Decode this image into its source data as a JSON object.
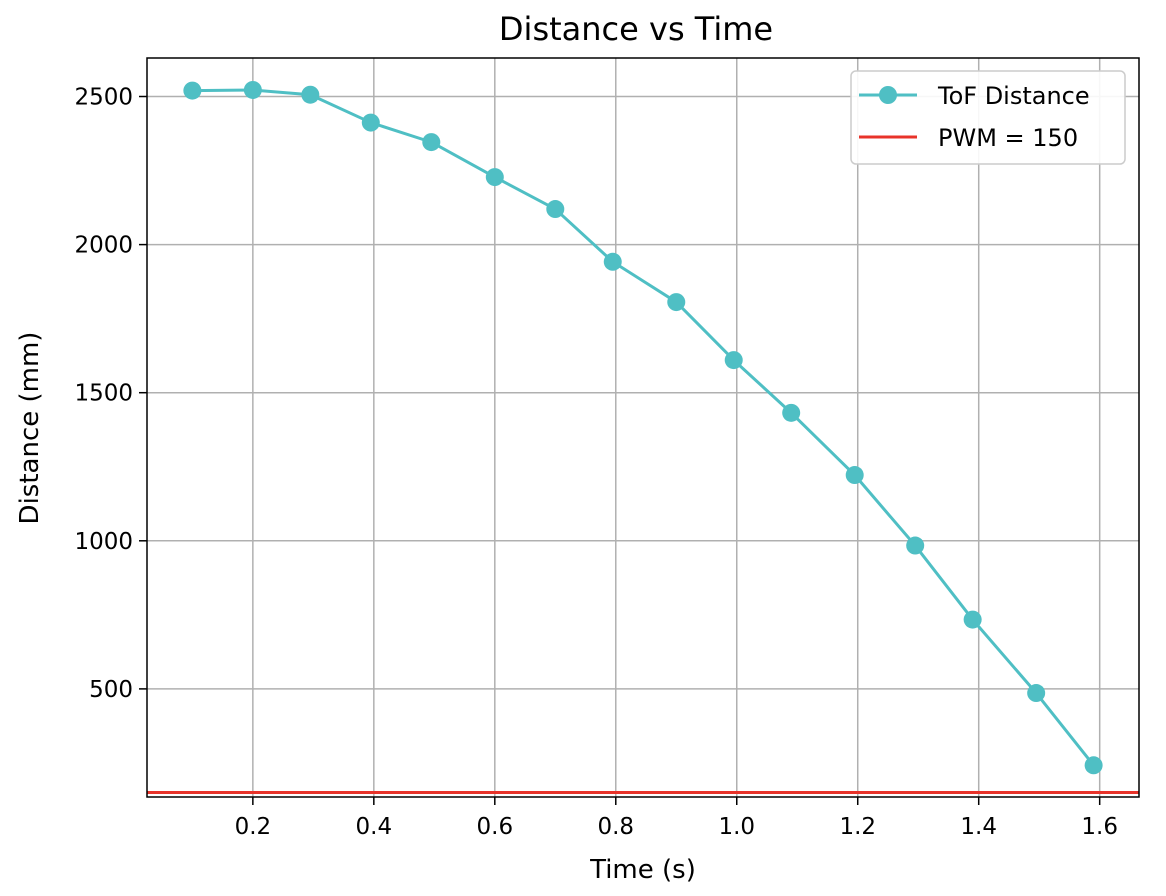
{
  "chart_data": {
    "type": "line",
    "title": "Distance vs Time",
    "xlabel": "Time (s)",
    "ylabel": "Distance (mm)",
    "xlim": [
      0.025,
      1.665
    ],
    "ylim": [
      135,
      2630
    ],
    "xticks": [
      0.2,
      0.4,
      0.6,
      0.8,
      1.0,
      1.2,
      1.4,
      1.6
    ],
    "xtick_labels": [
      "0.2",
      "0.4",
      "0.6",
      "0.8",
      "1.0",
      "1.2",
      "1.4",
      "1.6"
    ],
    "yticks": [
      500,
      1000,
      1500,
      2000,
      2500
    ],
    "ytick_labels": [
      "500",
      "1000",
      "1500",
      "2000",
      "2500"
    ],
    "grid": true,
    "legend_position": "top-right",
    "series": [
      {
        "name": "ToF Distance",
        "kind": "line-marker",
        "color": "#4fbfc4",
        "x": [
          0.1,
          0.2,
          0.295,
          0.395,
          0.495,
          0.6,
          0.7,
          0.795,
          0.9,
          0.995,
          1.09,
          1.195,
          1.295,
          1.39,
          1.495,
          1.59
        ],
        "y": [
          2520,
          2522,
          2506,
          2412,
          2346,
          2228,
          2120,
          1942,
          1806,
          1610,
          1432,
          1222,
          984,
          734,
          486,
          242
        ]
      },
      {
        "name": "PWM = 150",
        "kind": "hline",
        "color": "#e8332a",
        "y": 150
      }
    ]
  }
}
